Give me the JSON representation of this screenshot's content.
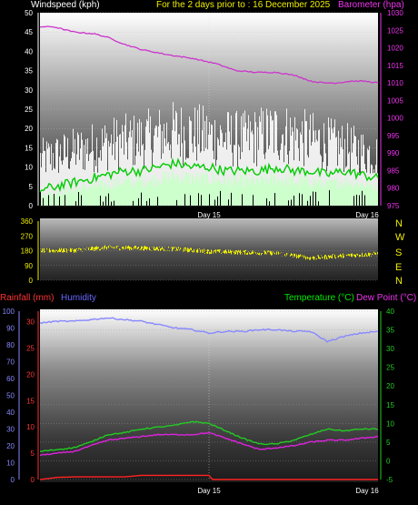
{
  "header": {
    "wind_label": "Windspeed (kph)",
    "title": "For the 2 days prior to : 16 December 2025",
    "baro_label": "Barometer (hpa)"
  },
  "lower_header": {
    "rain_label": "Rainfall (mm)",
    "humidity_label": "Humidity",
    "temp_label": "Temperature (°C)",
    "dew_label": "Dew Point (°C)"
  },
  "compass": [
    "N",
    "W",
    "S",
    "E",
    "N"
  ],
  "colors": {
    "wind": "#ffffff",
    "gust": "#ffffff",
    "wind_avg": "#00cc00",
    "wind_fill": "#ccffcc",
    "barometer": "#cc33cc",
    "direction": "#eeee00",
    "rain": "#ff2222",
    "humidity": "#8888ff",
    "temperature": "#22cc22",
    "dewpoint": "#dd22dd",
    "label_rain": "#ff3333",
    "label_humidity": "#6666ff",
    "label_temp": "#00ee00",
    "label_dew": "#ee33ee",
    "title": "#eeee00",
    "baro_label": "#ee33ee"
  },
  "chart_data": [
    {
      "type": "line",
      "name": "wind-barometer",
      "x_ticks": [
        "Day 15",
        "Day 16"
      ],
      "ylabel_left": "Windspeed (kph)",
      "ylim_left": [
        0,
        50
      ],
      "yticks_left": [
        0,
        5,
        10,
        15,
        20,
        25,
        30,
        35,
        40,
        45,
        50
      ],
      "ylabel_right": "Barometer (hpa)",
      "ylim_right": [
        975,
        1030
      ],
      "yticks_right": [
        975,
        980,
        985,
        990,
        995,
        1000,
        1005,
        1010,
        1015,
        1020,
        1025,
        1030
      ],
      "series": [
        {
          "name": "Barometer (hpa)",
          "axis": "right",
          "x": [
            0,
            0.04,
            0.1,
            0.16,
            0.2,
            0.25,
            0.3,
            0.38,
            0.45,
            0.52,
            0.58,
            0.64,
            0.7,
            0.76,
            0.8,
            0.84,
            0.88,
            0.92,
            0.96,
            1.0
          ],
          "values": [
            1026,
            1026,
            1024.5,
            1024,
            1023,
            1021,
            1019.5,
            1018,
            1017,
            1015.5,
            1013.5,
            1013,
            1013,
            1012,
            1010.5,
            1010,
            1010,
            1010.5,
            1010.5,
            1010
          ]
        },
        {
          "name": "Wind average",
          "axis": "left",
          "x": [
            0,
            0.05,
            0.1,
            0.15,
            0.2,
            0.25,
            0.3,
            0.35,
            0.4,
            0.45,
            0.5,
            0.55,
            0.6,
            0.65,
            0.7,
            0.75,
            0.8,
            0.85,
            0.9,
            0.95,
            1.0
          ],
          "values": [
            4,
            5,
            6,
            7,
            8,
            9,
            9,
            10,
            11,
            10,
            10,
            9,
            9,
            9,
            10,
            9,
            9,
            8,
            9,
            8,
            7
          ]
        },
        {
          "name": "Wind typical",
          "axis": "left",
          "x": [
            0,
            0.1,
            0.2,
            0.3,
            0.4,
            0.5,
            0.6,
            0.7,
            0.8,
            0.9,
            1.0
          ],
          "values": [
            12,
            14,
            16,
            17,
            19,
            18,
            17,
            19,
            17,
            15,
            13
          ]
        }
      ]
    },
    {
      "type": "line",
      "name": "wind-direction",
      "ylim": [
        0,
        360
      ],
      "yticks": [
        0,
        90,
        180,
        270,
        360
      ],
      "series": [
        {
          "name": "Wind direction",
          "x": [
            0,
            0.1,
            0.2,
            0.3,
            0.4,
            0.5,
            0.6,
            0.7,
            0.8,
            0.9,
            1.0
          ],
          "values": [
            180,
            182,
            200,
            195,
            190,
            175,
            170,
            165,
            135,
            150,
            160
          ]
        }
      ]
    },
    {
      "type": "line",
      "name": "temp-humidity-rain",
      "x_ticks": [
        "Day 15",
        "Day 16"
      ],
      "ylabel_left": "Rainfall (mm) / Humidity",
      "ylim_left": [
        0,
        100
      ],
      "yticks_left": [
        0,
        10,
        20,
        30,
        40,
        50,
        60,
        70,
        80,
        90,
        100
      ],
      "yticks_rain": [
        0,
        5,
        10,
        15,
        20,
        25,
        30
      ],
      "ylim_rain": [
        0,
        32
      ],
      "ylabel_right": "Temperature (°C) / Dew Point (°C)",
      "ylim_right": [
        -5,
        40
      ],
      "yticks_right": [
        -5,
        0,
        5,
        10,
        15,
        20,
        25,
        30,
        35,
        40
      ],
      "series": [
        {
          "name": "Humidity",
          "axis": "left",
          "x": [
            0,
            0.05,
            0.1,
            0.15,
            0.2,
            0.25,
            0.3,
            0.35,
            0.4,
            0.45,
            0.5,
            0.55,
            0.6,
            0.65,
            0.7,
            0.75,
            0.8,
            0.85,
            0.9,
            0.95,
            1.0
          ],
          "values": [
            93,
            94,
            94,
            95,
            96,
            95,
            94,
            92,
            90,
            89,
            87,
            88,
            88,
            89,
            89,
            88,
            88,
            82,
            85,
            87,
            88
          ]
        },
        {
          "name": "Temperature (°C)",
          "axis": "right",
          "x": [
            0,
            0.05,
            0.1,
            0.15,
            0.2,
            0.25,
            0.3,
            0.35,
            0.4,
            0.45,
            0.5,
            0.55,
            0.6,
            0.65,
            0.7,
            0.75,
            0.8,
            0.85,
            0.9,
            0.95,
            1.0
          ],
          "values": [
            2.5,
            3,
            3.5,
            5,
            7,
            7.5,
            8.5,
            9,
            9.5,
            10.5,
            10,
            8,
            6,
            4.5,
            4.5,
            5.5,
            7,
            8.5,
            8,
            8.5,
            8.5
          ]
        },
        {
          "name": "Dew Point (°C)",
          "axis": "right",
          "x": [
            0,
            0.05,
            0.1,
            0.15,
            0.2,
            0.25,
            0.3,
            0.35,
            0.4,
            0.45,
            0.5,
            0.55,
            0.6,
            0.65,
            0.7,
            0.75,
            0.8,
            0.85,
            0.9,
            0.95,
            1.0
          ],
          "values": [
            1.5,
            2,
            2.5,
            4,
            5.5,
            6,
            6.5,
            7,
            7,
            7,
            7.5,
            6,
            4.5,
            3,
            3.5,
            4,
            5,
            5.5,
            5.5,
            6,
            6.5
          ]
        },
        {
          "name": "Rainfall (mm)",
          "axis": "rain",
          "x": [
            0,
            0.05,
            0.1,
            0.15,
            0.2,
            0.25,
            0.3,
            0.35,
            0.4,
            0.45,
            0.5,
            0.51,
            0.55,
            0.6,
            0.7,
            0.8,
            0.9,
            1.0
          ],
          "values": [
            0,
            0.4,
            0.5,
            0.5,
            0.5,
            0.5,
            0.8,
            0.8,
            0.8,
            0.8,
            0.8,
            0,
            0,
            0,
            0,
            0,
            0,
            0
          ]
        }
      ]
    }
  ]
}
